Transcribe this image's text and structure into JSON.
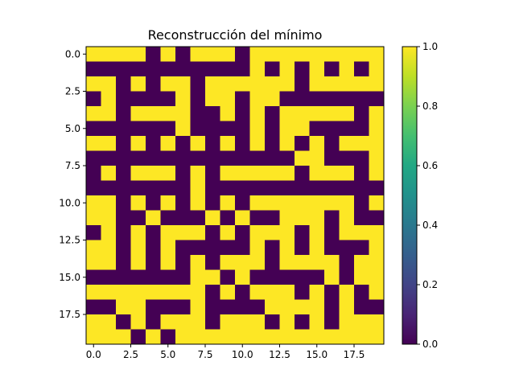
{
  "chart_data": {
    "type": "heatmap",
    "title": "Reconstrucción del mínimo",
    "xlabel": "",
    "ylabel": "",
    "xlim": [
      -0.5,
      19.5
    ],
    "ylim": [
      19.5,
      -0.5
    ],
    "x_ticks": [
      0,
      2.5,
      5,
      7.5,
      10,
      12.5,
      15,
      17.5
    ],
    "x_tick_labels": [
      "0.0",
      "2.5",
      "5.0",
      "7.5",
      "10.0",
      "12.5",
      "15.0",
      "17.5"
    ],
    "y_ticks": [
      0,
      2.5,
      5,
      7.5,
      10,
      12.5,
      15,
      17.5
    ],
    "y_tick_labels": [
      "0.0",
      "2.5",
      "5.0",
      "7.5",
      "10.0",
      "12.5",
      "15.0",
      "17.5"
    ],
    "colorbar": {
      "colormap": "viridis",
      "range": [
        0,
        1
      ],
      "ticks": [
        0,
        0.2,
        0.4,
        0.6,
        0.8,
        1
      ],
      "tick_labels": [
        "0.0",
        "0.2",
        "0.4",
        "0.6",
        "0.8",
        "1.0"
      ],
      "low_color": "#440154",
      "high_color": "#fde725"
    },
    "grid": false,
    "matrix": [
      [
        1,
        1,
        1,
        1,
        0,
        1,
        0,
        1,
        1,
        1,
        0,
        1,
        1,
        1,
        1,
        1,
        1,
        1,
        1,
        1
      ],
      [
        0,
        0,
        0,
        0,
        0,
        0,
        0,
        0,
        0,
        0,
        0,
        1,
        0,
        1,
        0,
        1,
        0,
        1,
        0,
        1
      ],
      [
        1,
        1,
        0,
        1,
        0,
        1,
        1,
        0,
        1,
        1,
        1,
        1,
        1,
        1,
        0,
        1,
        1,
        1,
        1,
        1
      ],
      [
        0,
        1,
        0,
        0,
        0,
        0,
        1,
        0,
        1,
        1,
        0,
        1,
        1,
        0,
        0,
        0,
        0,
        0,
        0,
        0
      ],
      [
        1,
        1,
        0,
        1,
        1,
        1,
        1,
        0,
        0,
        1,
        0,
        1,
        0,
        1,
        1,
        1,
        1,
        1,
        0,
        1
      ],
      [
        0,
        0,
        0,
        0,
        0,
        0,
        1,
        0,
        0,
        0,
        0,
        1,
        0,
        1,
        1,
        0,
        0,
        0,
        0,
        1
      ],
      [
        1,
        1,
        0,
        1,
        0,
        1,
        0,
        1,
        0,
        1,
        0,
        1,
        0,
        1,
        0,
        1,
        0,
        1,
        1,
        1
      ],
      [
        0,
        0,
        0,
        0,
        0,
        0,
        0,
        0,
        0,
        0,
        0,
        0,
        0,
        0,
        1,
        1,
        0,
        0,
        0,
        1
      ],
      [
        0,
        1,
        0,
        1,
        1,
        1,
        0,
        1,
        0,
        1,
        1,
        1,
        1,
        1,
        0,
        1,
        1,
        1,
        0,
        1
      ],
      [
        0,
        0,
        0,
        0,
        0,
        0,
        0,
        1,
        0,
        0,
        0,
        0,
        0,
        0,
        0,
        0,
        0,
        0,
        0,
        0
      ],
      [
        1,
        1,
        0,
        1,
        0,
        1,
        0,
        1,
        0,
        1,
        0,
        1,
        1,
        1,
        1,
        1,
        1,
        1,
        0,
        1
      ],
      [
        1,
        1,
        0,
        0,
        1,
        0,
        0,
        0,
        1,
        0,
        1,
        0,
        0,
        1,
        1,
        1,
        0,
        1,
        0,
        0
      ],
      [
        0,
        1,
        0,
        1,
        0,
        1,
        1,
        1,
        0,
        1,
        0,
        1,
        1,
        1,
        0,
        1,
        0,
        1,
        1,
        1
      ],
      [
        1,
        1,
        0,
        1,
        0,
        1,
        0,
        0,
        0,
        0,
        0,
        1,
        0,
        1,
        0,
        1,
        0,
        0,
        0,
        1
      ],
      [
        1,
        1,
        0,
        1,
        0,
        1,
        0,
        1,
        0,
        1,
        1,
        1,
        0,
        1,
        1,
        1,
        1,
        0,
        1,
        1
      ],
      [
        0,
        0,
        0,
        0,
        0,
        0,
        0,
        1,
        1,
        0,
        1,
        0,
        0,
        0,
        0,
        0,
        1,
        0,
        1,
        1
      ],
      [
        1,
        1,
        1,
        1,
        1,
        1,
        1,
        1,
        0,
        1,
        0,
        1,
        1,
        1,
        0,
        1,
        0,
        1,
        0,
        1
      ],
      [
        0,
        0,
        1,
        1,
        0,
        0,
        0,
        1,
        0,
        0,
        0,
        0,
        1,
        1,
        1,
        1,
        0,
        1,
        0,
        0
      ],
      [
        1,
        1,
        0,
        1,
        0,
        1,
        1,
        1,
        0,
        1,
        1,
        1,
        0,
        1,
        0,
        1,
        0,
        1,
        1,
        1
      ],
      [
        1,
        1,
        1,
        0,
        1,
        0,
        1,
        1,
        1,
        1,
        1,
        1,
        1,
        1,
        1,
        1,
        1,
        1,
        1,
        1
      ]
    ]
  }
}
